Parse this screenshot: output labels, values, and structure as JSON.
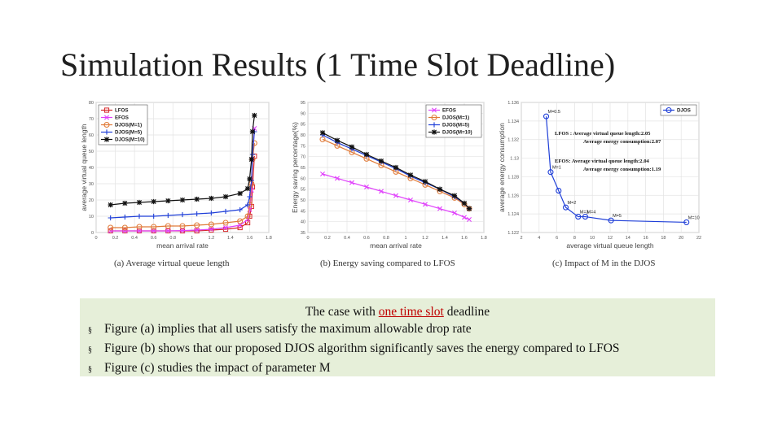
{
  "slide": {
    "title": "Simulation Results (1 Time Slot Deadline)"
  },
  "figures": {
    "a": {
      "caption": "(a) Average virtual queue length",
      "xlabel": "mean arrival rate",
      "ylabel": "average virtual queue length",
      "legend": [
        "LFOS",
        "EFOS",
        "DJOS(M=1)",
        "DJOS(M=5)",
        "DJOS(M=10)"
      ]
    },
    "b": {
      "caption": "(b) Energy saving compared to LFOS",
      "xlabel": "mean arrival rate",
      "ylabel": "Energy saving percentage(%)",
      "legend": [
        "EFOS",
        "DJOS(M=1)",
        "DJOS(M=5)",
        "DJOS(M=10)"
      ]
    },
    "c": {
      "caption": "(c) Impact of M in the DJOS",
      "xlabel": "average virtual queue length",
      "ylabel": "average energy consumption",
      "legend": [
        "DJOS"
      ],
      "annotations": {
        "lfos_line1": "LFOS : Average virtual queue length:2.05",
        "lfos_line2": "Average energy consumption:2.07",
        "efos_line1": "EFOS: Average virtual queue length:2.04",
        "efos_line2": "Average energy consumption:1.19"
      }
    }
  },
  "chart_data": [
    {
      "type": "line",
      "title": "",
      "xlabel": "mean arrival rate",
      "ylabel": "average virtual queue length",
      "xlim": [
        0,
        1.8
      ],
      "ylim": [
        0,
        80
      ],
      "xticks": [
        "0",
        "0.2",
        "0.4",
        "0.6",
        "0.8",
        "1",
        "1.2",
        "1.4",
        "1.6",
        "1.8"
      ],
      "yticks": [
        "0",
        "10",
        "20",
        "30",
        "40",
        "50",
        "60",
        "70",
        "80"
      ],
      "grid": true,
      "legend_position": "top-left",
      "x": [
        0.15,
        0.3,
        0.45,
        0.6,
        0.75,
        0.9,
        1.05,
        1.2,
        1.35,
        1.5,
        1.58,
        1.6,
        1.62,
        1.63,
        1.65
      ],
      "series": [
        {
          "name": "LFOS",
          "color": "#d62728",
          "marker": "square",
          "values": [
            1,
            1,
            1,
            1,
            1,
            1,
            1,
            1.5,
            2,
            3,
            6,
            10,
            16,
            28,
            47
          ]
        },
        {
          "name": "EFOS",
          "color": "#e040fb",
          "marker": "x",
          "values": [
            1,
            1,
            1,
            1,
            1,
            1.2,
            1.5,
            2,
            3,
            4.5,
            8,
            14,
            26,
            45,
            64
          ]
        },
        {
          "name": "DJOS(M=1)",
          "color": "#e07b39",
          "marker": "circle",
          "values": [
            3,
            3,
            3.5,
            3.5,
            4,
            4,
            4.5,
            5,
            6,
            7,
            10,
            17,
            30,
            45,
            55
          ]
        },
        {
          "name": "DJOS(M=5)",
          "color": "#1f3fd8",
          "marker": "plus",
          "values": [
            9,
            9.5,
            10,
            10,
            10.5,
            11,
            11.5,
            12,
            13,
            14,
            17,
            22,
            32,
            48,
            62
          ]
        },
        {
          "name": "DJOS(M=10)",
          "color": "#111111",
          "marker": "star",
          "values": [
            17,
            18,
            18.5,
            19,
            19.5,
            20,
            20.5,
            21,
            22,
            24,
            27,
            33,
            45,
            62,
            72
          ]
        }
      ]
    },
    {
      "type": "line",
      "title": "",
      "xlabel": "mean arrival rate",
      "ylabel": "Energy saving percentage(%)",
      "xlim": [
        0,
        1.8
      ],
      "ylim": [
        35,
        95
      ],
      "xticks": [
        "0",
        "0.2",
        "0.4",
        "0.6",
        "0.8",
        "1",
        "1.2",
        "1.4",
        "1.6",
        "1.8"
      ],
      "yticks": [
        "35",
        "40",
        "45",
        "50",
        "55",
        "60",
        "65",
        "70",
        "75",
        "80",
        "85",
        "90",
        "95"
      ],
      "grid": true,
      "legend_position": "top-right",
      "x": [
        0.15,
        0.3,
        0.45,
        0.6,
        0.75,
        0.9,
        1.05,
        1.2,
        1.35,
        1.5,
        1.6,
        1.65
      ],
      "series": [
        {
          "name": "EFOS",
          "color": "#e040fb",
          "marker": "x",
          "values": [
            62,
            60,
            58,
            56,
            54,
            52,
            50,
            48,
            46,
            44,
            42,
            41
          ]
        },
        {
          "name": "DJOS(M=1)",
          "color": "#e07b39",
          "marker": "circle",
          "values": [
            78,
            75,
            72,
            69,
            66,
            63,
            60,
            57,
            54,
            51,
            48,
            46
          ]
        },
        {
          "name": "DJOS(M=5)",
          "color": "#1f3fd8",
          "marker": "plus",
          "values": [
            80,
            76.5,
            73.5,
            70.5,
            67.5,
            64.5,
            61,
            58,
            55,
            51.5,
            48.5,
            46
          ]
        },
        {
          "name": "DJOS(M=10)",
          "color": "#111111",
          "marker": "star",
          "values": [
            81,
            77.5,
            74.5,
            71,
            68,
            65,
            61.5,
            58.5,
            55,
            52,
            48.5,
            46
          ]
        }
      ]
    },
    {
      "type": "line",
      "title": "",
      "xlabel": "average virtual queue length",
      "ylabel": "average energy consumption",
      "xlim": [
        2,
        22
      ],
      "ylim": [
        1.122,
        1.136
      ],
      "xticks": [
        "2",
        "4",
        "6",
        "8",
        "10",
        "12",
        "14",
        "16",
        "18",
        "20",
        "22"
      ],
      "yticks": [
        "1.122",
        "1.124",
        "1.126",
        "1.128",
        "1.13",
        "1.132",
        "1.134",
        "1.136"
      ],
      "grid": true,
      "legend_position": "top-right",
      "series": [
        {
          "name": "DJOS",
          "color": "#1f3fd8",
          "marker": "circle",
          "x": [
            4.8,
            5.3,
            6.2,
            7.0,
            8.4,
            9.2,
            12.1,
            20.6
          ],
          "values": [
            1.1345,
            1.1285,
            1.1265,
            1.1247,
            1.1237,
            1.1237,
            1.1233,
            1.1231
          ],
          "labels": [
            "M=0.5",
            "M=1",
            "",
            "M=2",
            "M=3",
            "M=4",
            "M=5",
            "M=10"
          ]
        }
      ]
    }
  ],
  "summary": {
    "heading_before": "The case with ",
    "heading_highlight": "one time slot",
    "heading_after": " deadline",
    "bullet_mark": "§",
    "bullets": [
      "Figure (a) implies that all users satisfy the maximum allowable drop rate",
      "Figure (b) shows that our proposed DJOS algorithm significantly saves the energy compared to LFOS",
      "Figure (c) studies the impact of parameter M"
    ]
  }
}
